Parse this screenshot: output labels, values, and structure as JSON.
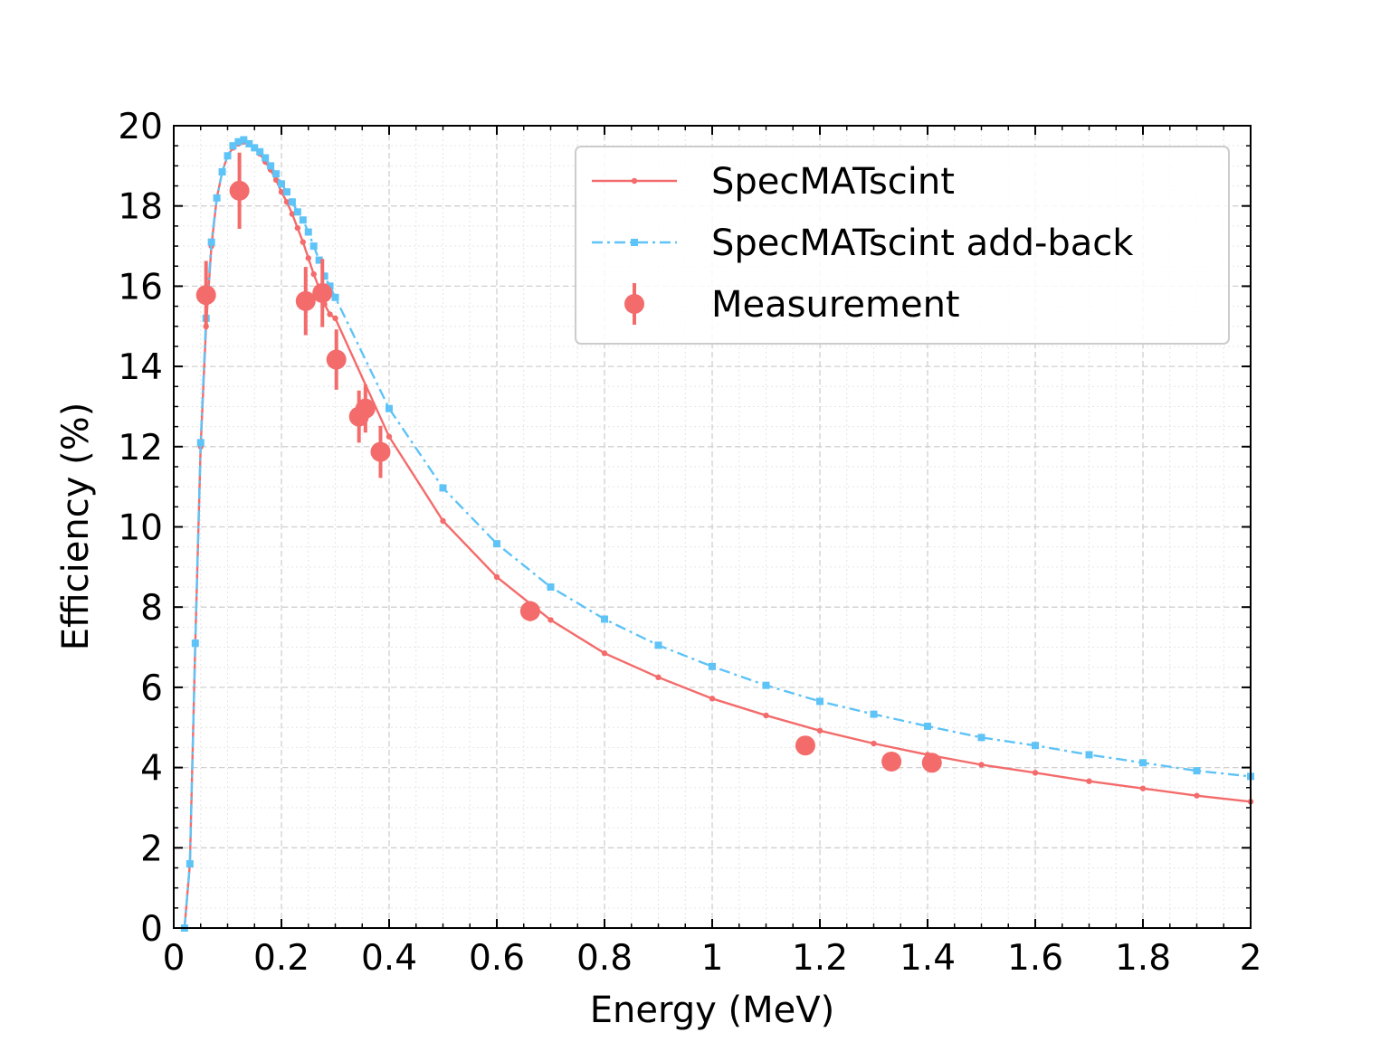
{
  "chart_data": {
    "type": "line",
    "xlabel": "Energy (MeV)",
    "ylabel": "Efficiency (%)",
    "xlim": [
      0,
      2
    ],
    "ylim": [
      0,
      20
    ],
    "x_ticks": [
      0,
      0.2,
      0.4,
      0.6,
      0.8,
      1,
      1.2,
      1.4,
      1.6,
      1.8,
      2
    ],
    "x_tick_labels": [
      "0",
      "0.2",
      "0.4",
      "0.6",
      "0.8",
      "1",
      "1.2",
      "1.4",
      "1.6",
      "1.8",
      "2"
    ],
    "y_ticks": [
      0,
      2,
      4,
      6,
      8,
      10,
      12,
      14,
      16,
      18,
      20
    ],
    "y_tick_labels": [
      "0",
      "2",
      "4",
      "6",
      "8",
      "10",
      "12",
      "14",
      "16",
      "18",
      "20"
    ],
    "grid": true,
    "legend_position": "top-right",
    "series": [
      {
        "name": "SpecMATscint",
        "color": "#f46b6b",
        "style": "solid",
        "marker": "dot",
        "x": [
          0.02,
          0.03,
          0.04,
          0.05,
          0.06,
          0.07,
          0.08,
          0.09,
          0.1,
          0.11,
          0.12,
          0.13,
          0.14,
          0.15,
          0.16,
          0.17,
          0.18,
          0.19,
          0.2,
          0.21,
          0.22,
          0.23,
          0.24,
          0.25,
          0.26,
          0.27,
          0.28,
          0.29,
          0.3,
          0.4,
          0.5,
          0.6,
          0.7,
          0.8,
          0.9,
          1.0,
          1.1,
          1.2,
          1.3,
          1.4,
          1.5,
          1.6,
          1.7,
          1.8,
          1.9,
          2.0
        ],
        "y": [
          0.0,
          1.6,
          7.1,
          12.0,
          15.0,
          17.0,
          18.2,
          18.85,
          19.25,
          19.45,
          19.55,
          19.6,
          19.55,
          19.45,
          19.3,
          19.1,
          18.9,
          18.65,
          18.35,
          18.1,
          17.8,
          17.45,
          17.1,
          16.7,
          16.3,
          15.95,
          15.55,
          15.3,
          15.2,
          12.25,
          10.15,
          8.75,
          7.68,
          6.85,
          6.25,
          5.72,
          5.3,
          4.92,
          4.6,
          4.32,
          4.07,
          3.87,
          3.66,
          3.48,
          3.3,
          3.15
        ]
      },
      {
        "name": "SpecMATscint add-back",
        "color": "#5ec3f7",
        "style": "dash-dot",
        "marker": "square",
        "x": [
          0.02,
          0.03,
          0.04,
          0.05,
          0.06,
          0.07,
          0.08,
          0.09,
          0.1,
          0.11,
          0.12,
          0.13,
          0.14,
          0.15,
          0.16,
          0.17,
          0.18,
          0.19,
          0.2,
          0.21,
          0.22,
          0.23,
          0.24,
          0.25,
          0.26,
          0.27,
          0.28,
          0.29,
          0.3,
          0.4,
          0.5,
          0.6,
          0.7,
          0.8,
          0.9,
          1.0,
          1.1,
          1.2,
          1.3,
          1.4,
          1.5,
          1.6,
          1.7,
          1.8,
          1.9,
          2.0
        ],
        "y": [
          0.0,
          1.6,
          7.1,
          12.1,
          15.2,
          17.1,
          18.2,
          18.85,
          19.25,
          19.5,
          19.6,
          19.65,
          19.55,
          19.45,
          19.35,
          19.2,
          19.0,
          18.8,
          18.55,
          18.35,
          18.1,
          17.85,
          17.65,
          17.35,
          17.0,
          16.65,
          16.25,
          16.0,
          15.72,
          12.95,
          10.97,
          9.58,
          8.5,
          7.7,
          7.05,
          6.52,
          6.05,
          5.65,
          5.33,
          5.03,
          4.75,
          4.55,
          4.32,
          4.12,
          3.92,
          3.78
        ]
      },
      {
        "name": "Measurement",
        "color": "#f46b6b",
        "style": "errorbar",
        "marker": "circle",
        "x": [
          0.06,
          0.122,
          0.245,
          0.276,
          0.302,
          0.344,
          0.356,
          0.384,
          0.662,
          1.173,
          1.333,
          1.408
        ],
        "y": [
          15.78,
          18.38,
          15.63,
          15.83,
          14.17,
          12.75,
          12.95,
          11.87,
          7.9,
          4.55,
          4.15,
          4.12
        ],
        "yerr": [
          0.85,
          0.95,
          0.85,
          0.85,
          0.75,
          0.65,
          0.6,
          0.65,
          0.25,
          0.15,
          0.15,
          0.15
        ]
      }
    ]
  }
}
